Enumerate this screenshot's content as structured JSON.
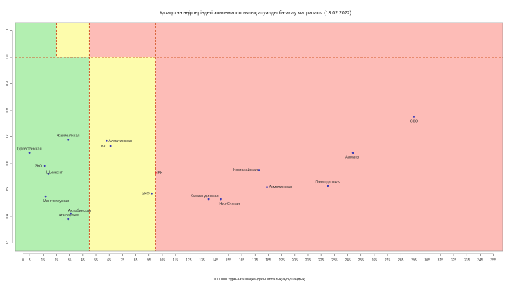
{
  "chart_data": {
    "type": "scatter",
    "title": "Қазақстан өңірлеріндегі эпидемиологиялық ахуалды бағалау матрицасы  (13.02.2022)",
    "xlabel": "100 000 тұрғынға шаққандағы апталық аурушаңдық",
    "ylabel": "",
    "xlim": [
      -6,
      362
    ],
    "ylim": [
      0.27,
      1.13
    ],
    "x_ticks": [
      0,
      5,
      15,
      25,
      35,
      45,
      55,
      65,
      75,
      85,
      95,
      105,
      115,
      125,
      135,
      145,
      155,
      165,
      175,
      185,
      195,
      205,
      215,
      225,
      235,
      245,
      255,
      265,
      275,
      285,
      295,
      305,
      315,
      325,
      335,
      345,
      355
    ],
    "y_ticks": [
      0.3,
      0.4,
      0.5,
      0.6,
      0.7,
      0.8,
      0.9,
      1.0,
      1.1
    ],
    "grid": false,
    "zones": [
      {
        "x": [
          -6,
          50
        ],
        "y": [
          1.0,
          1.13
        ],
        "color": "#b3efb1"
      },
      {
        "x": [
          -6,
          50
        ],
        "y": [
          0.27,
          1.0
        ],
        "color": "#b3efb1"
      },
      {
        "x": [
          50,
          362
        ],
        "y": [
          1.0,
          1.13
        ],
        "color": "#fdbcb7"
      },
      {
        "x": [
          100,
          362
        ],
        "y": [
          0.27,
          1.0
        ],
        "color": "#fdbcb7"
      },
      {
        "x": [
          25,
          50
        ],
        "y": [
          1.0,
          1.13
        ],
        "color": "#fdfcac"
      },
      {
        "x": [
          50,
          100
        ],
        "y": [
          0.27,
          1.0
        ],
        "color": "#fdfcac"
      }
    ],
    "threshold_lines": {
      "color": "#d35a2a",
      "y": 1.0,
      "x": [
        25,
        50,
        100
      ]
    },
    "points": [
      {
        "label": "Жамбылская",
        "x": 34,
        "y": 0.69,
        "color": "#3b3bb5"
      },
      {
        "label": "Туркестанская",
        "x": 5,
        "y": 0.64,
        "color": "#3b3bb5"
      },
      {
        "label": "ЗКО",
        "x": 16,
        "y": 0.59,
        "color": "#3b3bb5"
      },
      {
        "label": "Шымкент",
        "x": 19,
        "y": 0.56,
        "color": "#3b3bb5"
      },
      {
        "label": "Мангистауская",
        "x": 17,
        "y": 0.475,
        "color": "#3b3bb5"
      },
      {
        "label": "Актюбинская",
        "x": 36,
        "y": 0.41,
        "color": "#3b3bb5"
      },
      {
        "label": "Атырауская",
        "x": 34,
        "y": 0.39,
        "color": "#3b3bb5"
      },
      {
        "label": "Алматинская",
        "x": 63,
        "y": 0.685,
        "color": "#3b3bb5"
      },
      {
        "label": "ВКО",
        "x": 66,
        "y": 0.665,
        "color": "#3b3bb5"
      },
      {
        "label": "РК",
        "x": 100,
        "y": 0.565,
        "color": "#e0332b"
      },
      {
        "label": "ЭКО",
        "x": 97,
        "y": 0.485,
        "color": "#3b3bb5"
      },
      {
        "label": "Карагандинская",
        "x": 140,
        "y": 0.465,
        "color": "#3b3bb5"
      },
      {
        "label": "Нур-Султан",
        "x": 149,
        "y": 0.465,
        "color": "#3b3bb5"
      },
      {
        "label": "Костанайская",
        "x": 178,
        "y": 0.575,
        "color": "#3b3bb5"
      },
      {
        "label": "Акмолинская",
        "x": 184,
        "y": 0.51,
        "color": "#3b3bb5"
      },
      {
        "label": "Павлодарская",
        "x": 230,
        "y": 0.515,
        "color": "#3b3bb5"
      },
      {
        "label": "Алматы",
        "x": 249,
        "y": 0.64,
        "color": "#3b3bb5"
      },
      {
        "label": "СКО",
        "x": 295,
        "y": 0.775,
        "color": "#3b3bb5"
      }
    ]
  }
}
